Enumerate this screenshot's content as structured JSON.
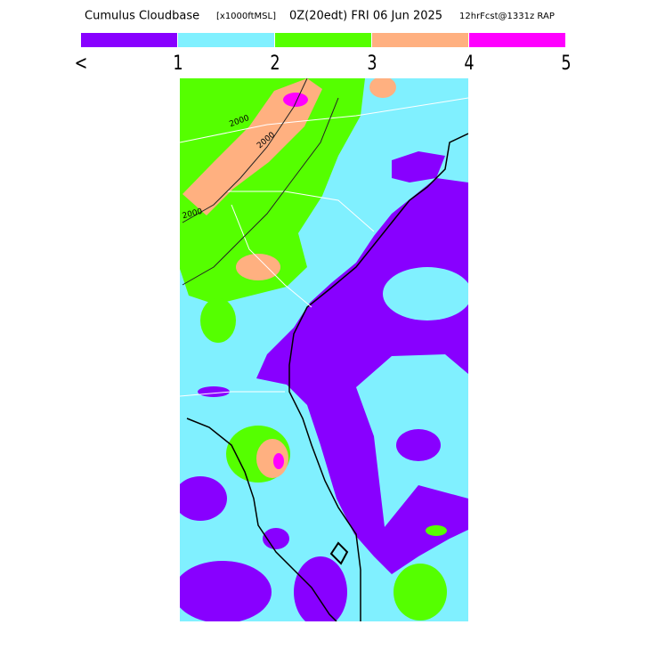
{
  "header": {
    "title": "Cumulus Cloudbase",
    "units": "[x1000ftMSL]",
    "time": "0Z(20edt) FRI 06 Jun 2025",
    "forecast": "12hrFcst@1331z RAP"
  },
  "legend": {
    "colors": [
      "#8800ff",
      "#80f0ff",
      "#55ff00",
      "#ffb080",
      "#ff00ff"
    ],
    "labels": [
      "<",
      "1",
      "2",
      "3",
      "4",
      "5"
    ]
  },
  "map": {
    "contour_labels": [
      "2000",
      "2000",
      "2000"
    ]
  }
}
